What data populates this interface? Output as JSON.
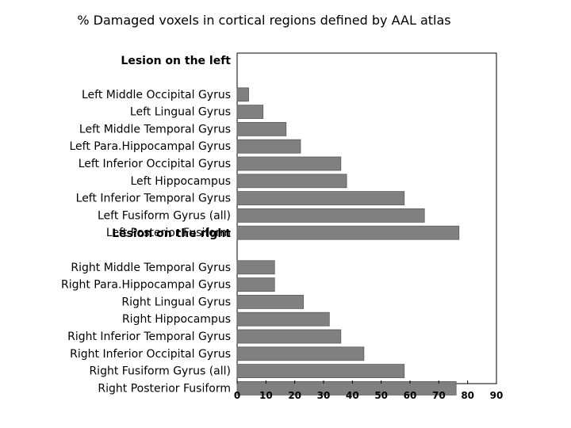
{
  "chart_data": {
    "type": "bar",
    "orientation": "horizontal",
    "title": "% Damaged voxels in cortical regions defined by AAL atlas",
    "xlabel": "",
    "ylabel": "",
    "xlim": [
      0,
      90
    ],
    "xticks": [
      "0",
      "10",
      "20",
      "30",
      "40",
      "50",
      "60",
      "70",
      "80",
      "90"
    ],
    "grid": false,
    "bar_color": "#808080",
    "groups": [
      {
        "name": "Lesion on the left",
        "categories": [
          "Left Middle Occipital Gyrus",
          "Left Lingual Gyrus",
          "Left Middle Temporal Gyrus",
          "Left Para.Hippocampal Gyrus",
          "Left Inferior Occipital Gyrus",
          "Left Hippocampus",
          "Left Inferior Temporal Gyrus",
          "Left Fusiform Gyrus (all)",
          "Left Posterior Fusiform"
        ],
        "values": [
          4,
          9,
          17,
          22,
          36,
          38,
          58,
          65,
          77
        ]
      },
      {
        "name": "Lesion on the right",
        "categories": [
          "Right Middle Temporal Gyrus",
          "Right Para.Hippocampal Gyrus",
          "Right Lingual Gyrus",
          "Right Hippocampus",
          "Right Inferior Temporal Gyrus",
          "Right Inferior Occipital Gyrus",
          "Right Fusiform Gyrus (all)",
          "Right Posterior Fusiform"
        ],
        "values": [
          13,
          13,
          23,
          32,
          36,
          44,
          58,
          76
        ]
      }
    ]
  }
}
